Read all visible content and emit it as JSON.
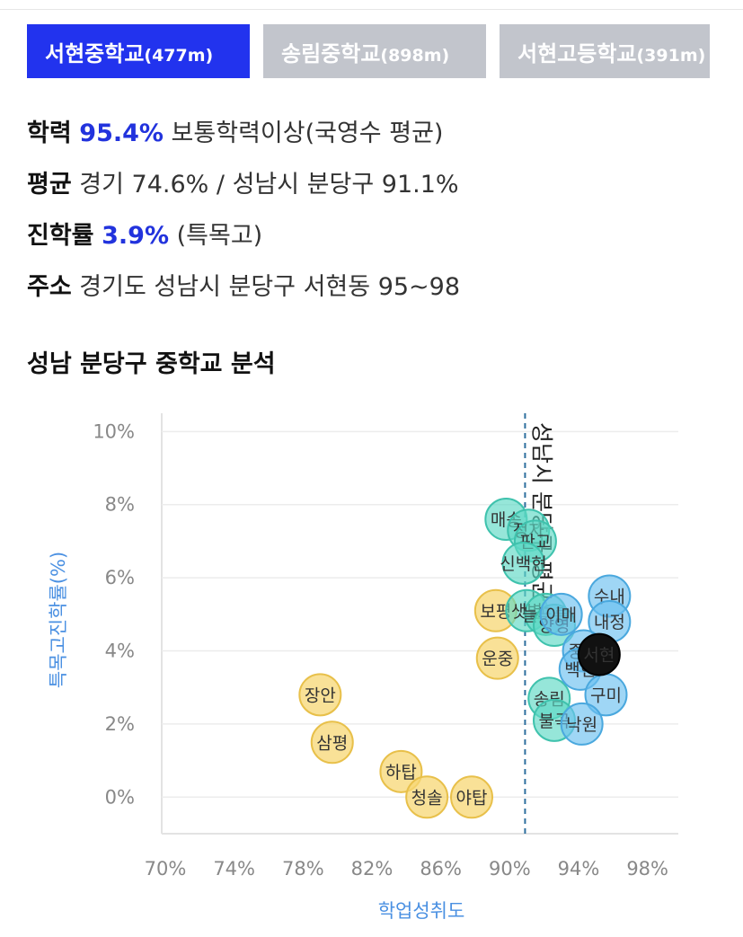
{
  "tabs": [
    {
      "name": "서현중학교",
      "dist": "(477m)",
      "active": true
    },
    {
      "name": "송림중학교",
      "dist": "(898m)",
      "active": false
    },
    {
      "name": "서현고등학교",
      "dist": "(391m)",
      "active": false
    }
  ],
  "info": {
    "academic": {
      "label": "학력",
      "value": "95.4%",
      "desc": "보통학력이상(국영수 평균)"
    },
    "average": {
      "label": "평균",
      "text": "경기 74.6% / 성남시 분당구 91.1%"
    },
    "advance": {
      "label": "진학률",
      "value": "3.9%",
      "desc": "(특목고)"
    },
    "address": {
      "label": "주소",
      "text": "경기도 성남시 분당구 서현동 95~98"
    }
  },
  "section_title": "성남 분당구 중학교 분석",
  "chart_data": {
    "type": "scatter",
    "xlabel": "학업성취도",
    "ylabel": "특목고진학률(%)",
    "xlim": [
      70,
      100
    ],
    "ylim": [
      -1,
      10.5
    ],
    "x_ticks": [
      "70%",
      "74%",
      "78%",
      "82%",
      "86%",
      "90%",
      "94%",
      "98%"
    ],
    "y_ticks": [
      "0%",
      "2%",
      "4%",
      "6%",
      "8%",
      "10%"
    ],
    "reference_line": {
      "x": 91.1,
      "label": "성남시 분당구 평균"
    },
    "colors": {
      "yellow": "#f7d774",
      "teal": "#5ed8c4",
      "blue": "#6cc0ef",
      "current": "#111111"
    },
    "series": [
      {
        "name": "",
        "color": "yellow",
        "points": [
          {
            "x": 79.2,
            "y": 2.8,
            "label": "장안"
          },
          {
            "x": 79.9,
            "y": 1.5,
            "label": "삼평"
          },
          {
            "x": 83.9,
            "y": 0.7,
            "label": "하탑"
          },
          {
            "x": 85.4,
            "y": 0.0,
            "label": "청솔"
          },
          {
            "x": 88.0,
            "y": 0.0,
            "label": "야탑"
          },
          {
            "x": 89.4,
            "y": 5.1,
            "label": "보평"
          },
          {
            "x": 89.5,
            "y": 3.8,
            "label": "운중"
          }
        ]
      },
      {
        "name": "",
        "color": "teal",
        "points": [
          {
            "x": 90.0,
            "y": 7.6,
            "label": "매송"
          },
          {
            "x": 91.3,
            "y": 7.3,
            "label": "정자"
          },
          {
            "x": 91.7,
            "y": 7.0,
            "label": "판교"
          },
          {
            "x": 91.0,
            "y": 6.4,
            "label": "신백현"
          },
          {
            "x": 91.2,
            "y": 5.1,
            "label": "샛별"
          },
          {
            "x": 92.3,
            "y": 5.0,
            "label": "늘푸른"
          },
          {
            "x": 92.8,
            "y": 4.7,
            "label": "양영"
          },
          {
            "x": 92.5,
            "y": 2.7,
            "label": "송림"
          },
          {
            "x": 92.8,
            "y": 2.1,
            "label": "불곡"
          }
        ]
      },
      {
        "name": "",
        "color": "blue",
        "points": [
          {
            "x": 93.2,
            "y": 5.0,
            "label": "이매"
          },
          {
            "x": 96.0,
            "y": 5.5,
            "label": "수내"
          },
          {
            "x": 96.0,
            "y": 4.8,
            "label": "내정"
          },
          {
            "x": 94.5,
            "y": 4.0,
            "label": "중앙"
          },
          {
            "x": 94.3,
            "y": 3.5,
            "label": "백현"
          },
          {
            "x": 95.8,
            "y": 2.8,
            "label": "구미"
          },
          {
            "x": 94.4,
            "y": 2.0,
            "label": "낙원"
          }
        ]
      },
      {
        "name": "",
        "color": "current",
        "points": [
          {
            "x": 95.4,
            "y": 3.9,
            "label": "서현"
          }
        ]
      }
    ]
  }
}
